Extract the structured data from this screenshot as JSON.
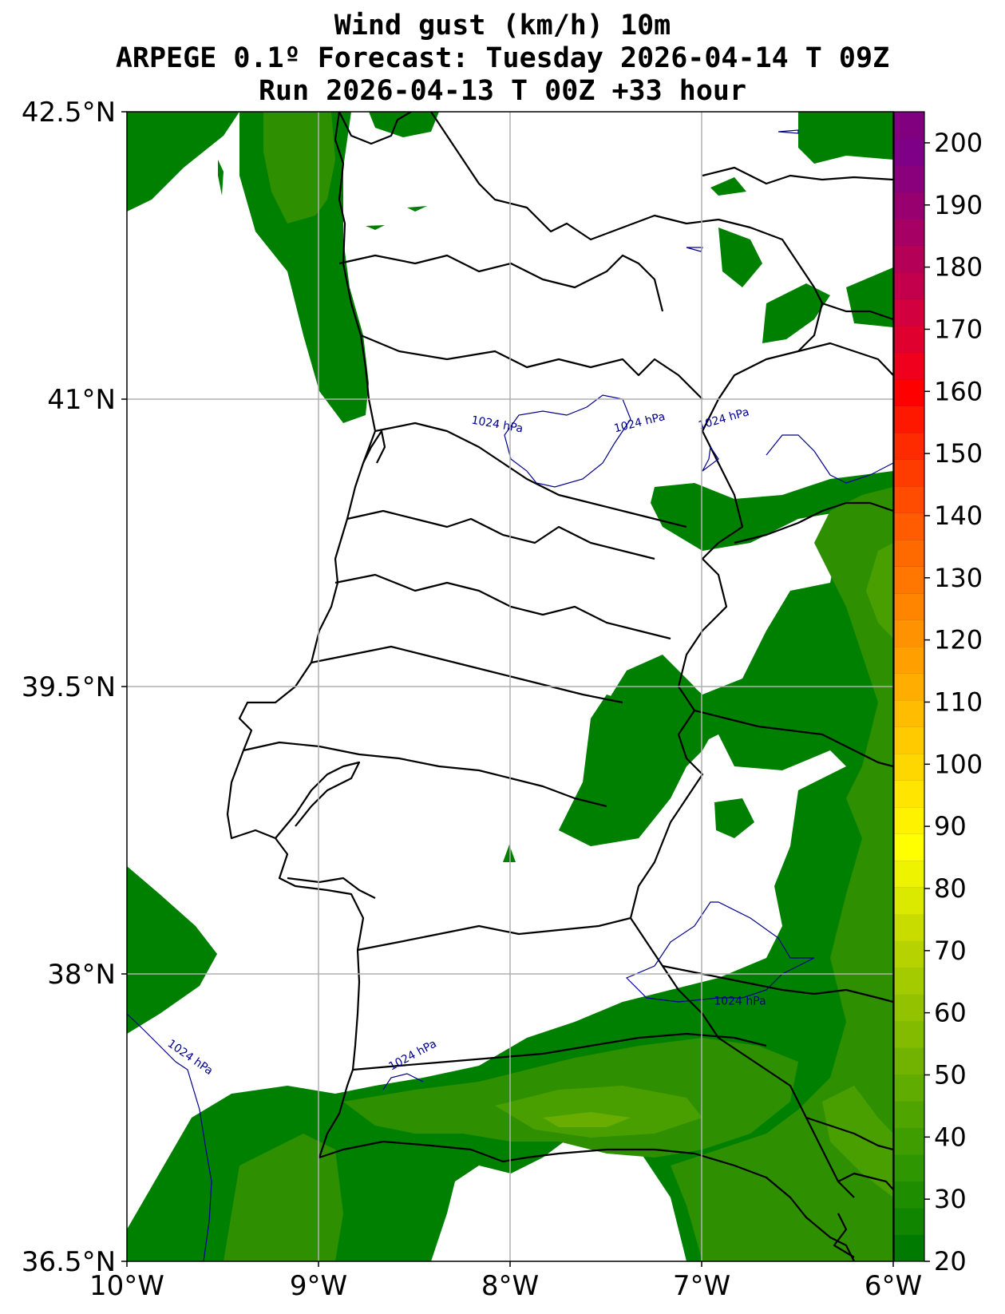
{
  "title": {
    "line1": "Wind gust (km/h) 10m",
    "line2": "ARPEGE 0.1º Forecast: Tuesday 2026-04-14 T 09Z",
    "line3": "Run 2026-04-13 T 00Z +33 hour"
  },
  "map": {
    "lon_range": [
      -10,
      -6
    ],
    "lat_range": [
      36.5,
      42.5
    ],
    "lon_ticks": [
      {
        "value": -10,
        "label": "10°W"
      },
      {
        "value": -9,
        "label": "9°W"
      },
      {
        "value": -8,
        "label": "8°W"
      },
      {
        "value": -7,
        "label": "7°W"
      },
      {
        "value": -6,
        "label": "6°W"
      }
    ],
    "lat_ticks": [
      {
        "value": 42.5,
        "label": "42.5°N"
      },
      {
        "value": 41,
        "label": "41°N"
      },
      {
        "value": 39.5,
        "label": "39.5°N"
      },
      {
        "value": 38,
        "label": "38°N"
      },
      {
        "value": 36.5,
        "label": "36.5°N"
      }
    ],
    "grid": true,
    "isobar_labels": [
      {
        "text": "1024 hPa",
        "lon": -8.07,
        "lat": 40.85,
        "rotate": 10
      },
      {
        "text": "1024 hPa",
        "lon": -7.32,
        "lat": 40.86,
        "rotate": -14
      },
      {
        "text": "1024 hPa",
        "lon": -6.88,
        "lat": 40.88,
        "rotate": -16
      },
      {
        "text": "1024 hPa",
        "lon": -9.68,
        "lat": 37.55,
        "rotate": 35
      },
      {
        "text": "1024 hPa",
        "lon": -8.5,
        "lat": 37.56,
        "rotate": -28
      },
      {
        "text": "1024 hPa",
        "lon": -6.8,
        "lat": 37.84,
        "rotate": 0
      }
    ]
  },
  "colorbar": {
    "ticks": [
      "20",
      "30",
      "40",
      "50",
      "60",
      "70",
      "80",
      "90",
      "100",
      "110",
      "120",
      "130",
      "140",
      "150",
      "160",
      "170",
      "180",
      "190",
      "200"
    ],
    "range": [
      20,
      205
    ],
    "colors": [
      "#007a00",
      "#0f8500",
      "#1e8e00",
      "#2e9600",
      "#3f9d00",
      "#4fa400",
      "#60ac00",
      "#71b300",
      "#82bb00",
      "#93c300",
      "#a4ca00",
      "#b6d200",
      "#c8dc00",
      "#dbe800",
      "#eef400",
      "#ffff00",
      "#fff200",
      "#ffe500",
      "#ffd700",
      "#ffca00",
      "#ffbc00",
      "#ffae00",
      "#ffa000",
      "#ff9200",
      "#ff8500",
      "#ff7700",
      "#ff6a00",
      "#ff5b00",
      "#ff4c00",
      "#ff3c00",
      "#ff2b00",
      "#ff1800",
      "#ff0000",
      "#f0001c",
      "#e00030",
      "#d2003f",
      "#c3004c",
      "#b50058",
      "#a60064",
      "#980070",
      "#8a007c",
      "#7d0086",
      "#800080"
    ]
  },
  "wind_colors": {
    "level1": "#008000",
    "level2": "#2e8f00",
    "level3": "#4a9f00",
    "level4": "#68ad00"
  }
}
